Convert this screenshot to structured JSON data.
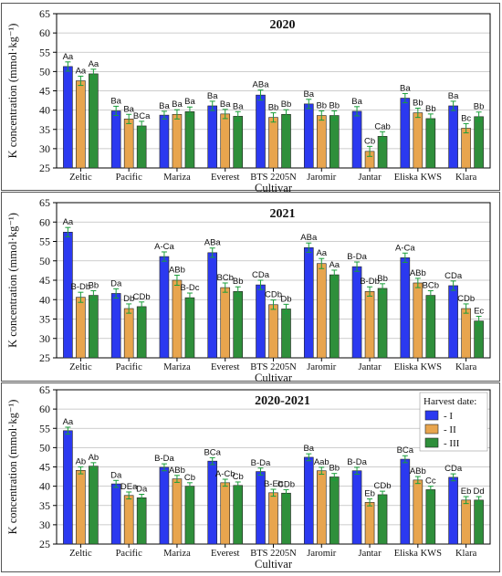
{
  "legend": {
    "title": "Harvest date:",
    "items": [
      "- I",
      "- II",
      "- III"
    ]
  },
  "colors": {
    "series": [
      "#2b39f0",
      "#e8a54e",
      "#2f8f3b"
    ],
    "error_bar": "#1a9e3a",
    "grid": "#bdbdbd",
    "frame": "#555555"
  },
  "chart_data": [
    {
      "type": "bar",
      "title": "2020",
      "xlabel": "Cultivar",
      "ylabel": "K concentration (mmol·kg⁻¹)",
      "ylim": [
        25,
        65
      ],
      "yticks": [
        25,
        30,
        35,
        40,
        45,
        50,
        55,
        60,
        65
      ],
      "grid": true,
      "categories": [
        "Zeltic",
        "Pacific",
        "Mariza",
        "Everest",
        "BTS 2205N",
        "Jaromir",
        "Jantar",
        "Eliska KWS",
        "Klara"
      ],
      "series": [
        {
          "name": "I",
          "values": [
            51.3,
            39.8,
            38.7,
            41.1,
            43.9,
            41.6,
            39.7,
            43.1,
            41.1
          ],
          "errors": [
            1.2,
            1.2,
            1.0,
            1.2,
            1.3,
            1.2,
            1.2,
            1.2,
            1.2
          ],
          "labels": [
            "Aa",
            "Ba",
            "Ba",
            "Ba",
            "ABa",
            "Ba",
            "Ba",
            "Ba",
            "Ba"
          ]
        },
        {
          "name": "II",
          "values": [
            47.6,
            37.7,
            38.9,
            39.0,
            38.1,
            38.6,
            29.3,
            39.3,
            35.3
          ],
          "errors": [
            1.2,
            1.2,
            1.2,
            1.2,
            1.2,
            1.2,
            1.3,
            1.2,
            1.2
          ],
          "labels": [
            "Aa",
            "Ba",
            "Ba",
            "Ba",
            "Bb",
            "Bb",
            "Cb",
            "Bb",
            "Bc"
          ]
        },
        {
          "name": "III",
          "values": [
            49.4,
            35.9,
            39.6,
            38.4,
            38.9,
            38.6,
            33.2,
            37.8,
            38.3
          ],
          "errors": [
            1.2,
            1.2,
            1.2,
            1.2,
            1.2,
            1.2,
            1.2,
            1.2,
            1.2
          ],
          "labels": [
            "Aa",
            "BCa",
            "Ba",
            "Ba",
            "Bb",
            "Bb",
            "Cab",
            "Bb",
            "Bb"
          ]
        }
      ]
    },
    {
      "type": "bar",
      "title": "2021",
      "xlabel": "Cultivar",
      "ylabel": "K concentration (mmol·kg⁻¹)",
      "ylim": [
        25,
        65
      ],
      "yticks": [
        25,
        30,
        35,
        40,
        45,
        50,
        55,
        60,
        65
      ],
      "grid": true,
      "categories": [
        "Zeltic",
        "Pacific",
        "Mariza",
        "Everest",
        "BTS 2205N",
        "Jaromir",
        "Jantar",
        "Eliska KWS",
        "Klara"
      ],
      "series": [
        {
          "name": "I",
          "values": [
            57.4,
            41.6,
            51.1,
            52.1,
            43.8,
            53.4,
            48.5,
            50.8,
            43.6
          ],
          "errors": [
            1.2,
            1.2,
            1.2,
            1.2,
            1.2,
            1.2,
            1.2,
            1.2,
            1.2
          ],
          "labels": [
            "Aa",
            "Da",
            "A-Ca",
            "ABa",
            "CDa",
            "ABa",
            "B-Da",
            "A-Ca",
            "CDa"
          ]
        },
        {
          "name": "II",
          "values": [
            40.6,
            37.7,
            45.0,
            43.1,
            38.7,
            49.3,
            42.1,
            44.3,
            37.7
          ],
          "errors": [
            1.3,
            1.2,
            1.3,
            1.2,
            1.2,
            1.3,
            1.2,
            1.2,
            1.2
          ],
          "labels": [
            "B-Db",
            "Db",
            "ABb",
            "BCb",
            "CDb",
            "Aa",
            "B-Db",
            "ABb",
            "CDb"
          ]
        },
        {
          "name": "III",
          "values": [
            41.1,
            38.2,
            40.5,
            42.1,
            37.6,
            46.4,
            42.9,
            41.1,
            34.5
          ],
          "errors": [
            1.2,
            1.2,
            1.2,
            1.2,
            1.2,
            1.2,
            1.2,
            1.2,
            1.2
          ],
          "labels": [
            "Bb",
            "CDb",
            "B-Dc",
            "Bb",
            "Db",
            "Aa",
            "Bb",
            "BCb",
            "Ec"
          ]
        }
      ]
    },
    {
      "type": "bar",
      "title": "2020-2021",
      "xlabel": "Cultivar",
      "ylabel": "K concentration (mmol·kg⁻¹)",
      "ylim": [
        25,
        65
      ],
      "yticks": [
        25,
        30,
        35,
        40,
        45,
        50,
        55,
        60,
        65
      ],
      "grid": true,
      "legend_position": "top-right",
      "categories": [
        "Zeltic",
        "Pacific",
        "Mariza",
        "Everest",
        "BTS 2205N",
        "Jaromir",
        "Jantar",
        "Eliska KWS",
        "Klara"
      ],
      "series": [
        {
          "name": "I",
          "values": [
            54.4,
            40.6,
            44.9,
            46.5,
            43.8,
            47.5,
            44.0,
            47.0,
            42.3
          ],
          "errors": [
            0.9,
            0.9,
            0.9,
            0.9,
            0.9,
            0.9,
            0.9,
            0.9,
            0.9
          ],
          "labels": [
            "Aa",
            "Da",
            "B-Da",
            "BCa",
            "B-Da",
            "Ba",
            "B-Da",
            "BCa",
            "CDa"
          ]
        },
        {
          "name": "II",
          "values": [
            44.1,
            37.6,
            41.9,
            40.9,
            38.3,
            44.0,
            35.8,
            41.6,
            36.4
          ],
          "errors": [
            0.9,
            0.9,
            0.9,
            0.9,
            0.9,
            0.9,
            0.9,
            0.9,
            0.9
          ],
          "labels": [
            "Ab",
            "DEa",
            "ABb",
            "A-Cb",
            "B-Eb",
            "Aab",
            "Eb",
            "ABb",
            "Eb"
          ]
        },
        {
          "name": "III",
          "values": [
            45.2,
            37.0,
            40.0,
            40.2,
            38.2,
            42.4,
            37.8,
            39.1,
            36.4
          ],
          "errors": [
            0.9,
            0.9,
            0.9,
            0.9,
            0.9,
            0.9,
            0.9,
            0.9,
            0.9
          ],
          "labels": [
            "Ab",
            "Da",
            "Cb",
            "Cb",
            "CDb",
            "Bb",
            "CDb",
            "Cc",
            "Dd"
          ]
        }
      ]
    }
  ]
}
